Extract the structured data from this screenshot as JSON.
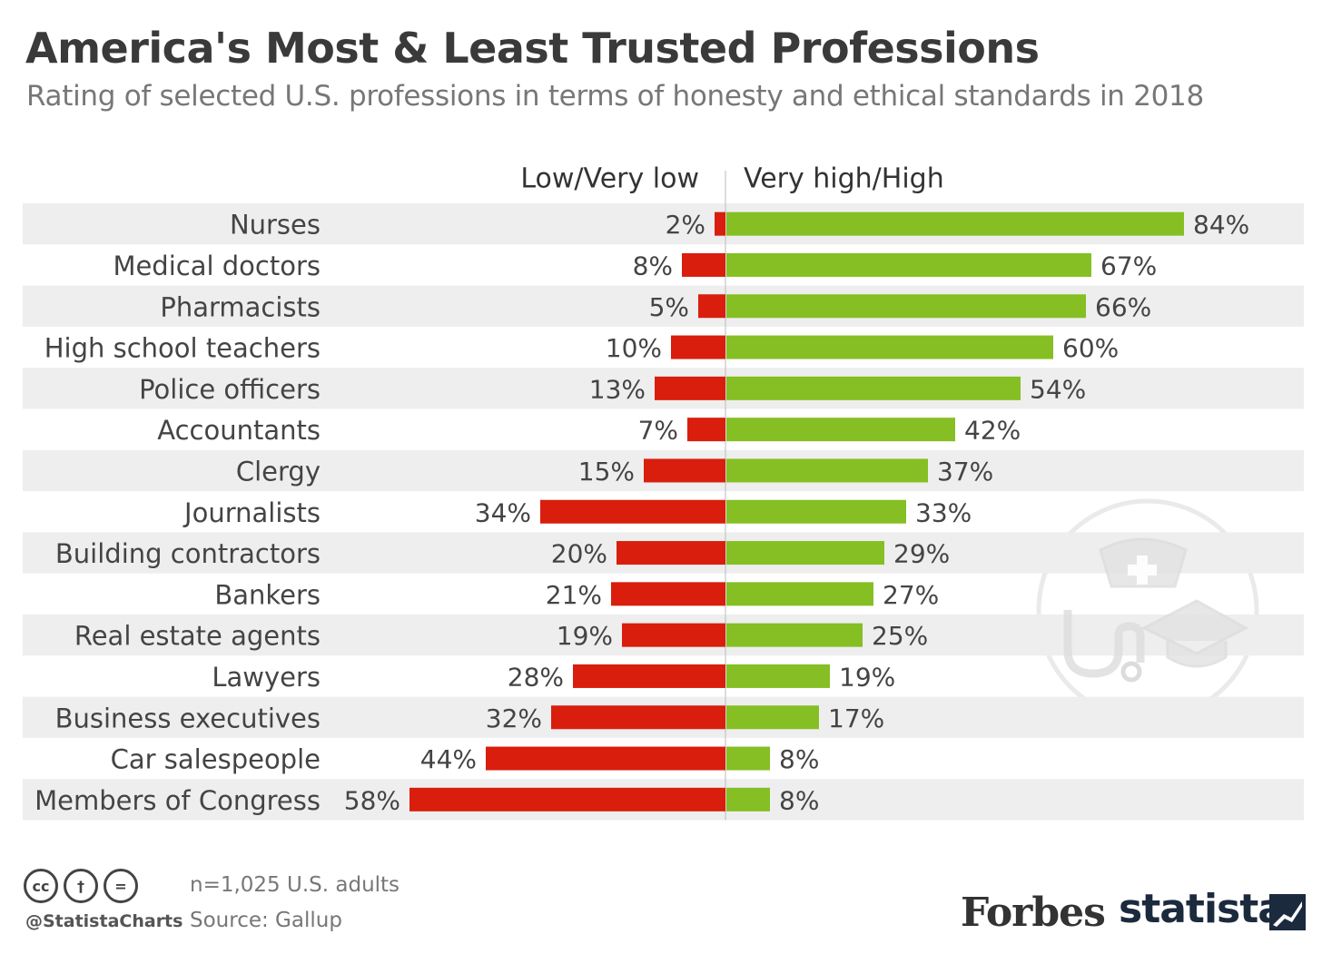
{
  "title": "America's Most & Least Trusted Professions",
  "subtitle": "Rating of selected U.S. professions in terms of honesty and ethical standards in 2018",
  "chart_data": {
    "type": "bar",
    "orientation": "horizontal-diverging",
    "categories": [
      "Nurses",
      "Medical doctors",
      "Pharmacists",
      "High school teachers",
      "Police officers",
      "Accountants",
      "Clergy",
      "Journalists",
      "Building contractors",
      "Bankers",
      "Real estate agents",
      "Lawyers",
      "Business executives",
      "Car salespeople",
      "Members of Congress"
    ],
    "series": [
      {
        "name": "Low/Very low",
        "color": "#d91e0d",
        "values": [
          2,
          8,
          5,
          10,
          13,
          7,
          15,
          34,
          20,
          21,
          19,
          28,
          32,
          44,
          58
        ],
        "labels": [
          "2%",
          "8%",
          "5%",
          "10%",
          "13%",
          "7%",
          "15%",
          "34%",
          "20%",
          "21%",
          "19%",
          "28%",
          "32%",
          "44%",
          "58%"
        ]
      },
      {
        "name": "Very high/High",
        "color": "#85bf24",
        "values": [
          84,
          67,
          66,
          60,
          54,
          42,
          37,
          33,
          29,
          27,
          25,
          19,
          17,
          8,
          8
        ],
        "labels": [
          "84%",
          "67%",
          "66%",
          "60%",
          "54%",
          "42%",
          "37%",
          "33%",
          "29%",
          "27%",
          "25%",
          "19%",
          "17%",
          "8%",
          "8%"
        ]
      }
    ],
    "unit": "%",
    "grid": false,
    "legend_placement": "top"
  },
  "footer": {
    "handle": "@StatistaCharts",
    "note": "n=1,025 U.S. adults",
    "source": "Source: Gallup",
    "license_icons": [
      "cc",
      "by",
      "nd"
    ],
    "icon_glyphs": [
      "cc",
      "†",
      "="
    ],
    "brand_forbes": "Forbes",
    "brand_statista": "statista"
  },
  "decorations": {
    "watermark_icons": [
      "nurse-cap-icon",
      "stethoscope-icon",
      "graduation-cap-icon"
    ]
  }
}
